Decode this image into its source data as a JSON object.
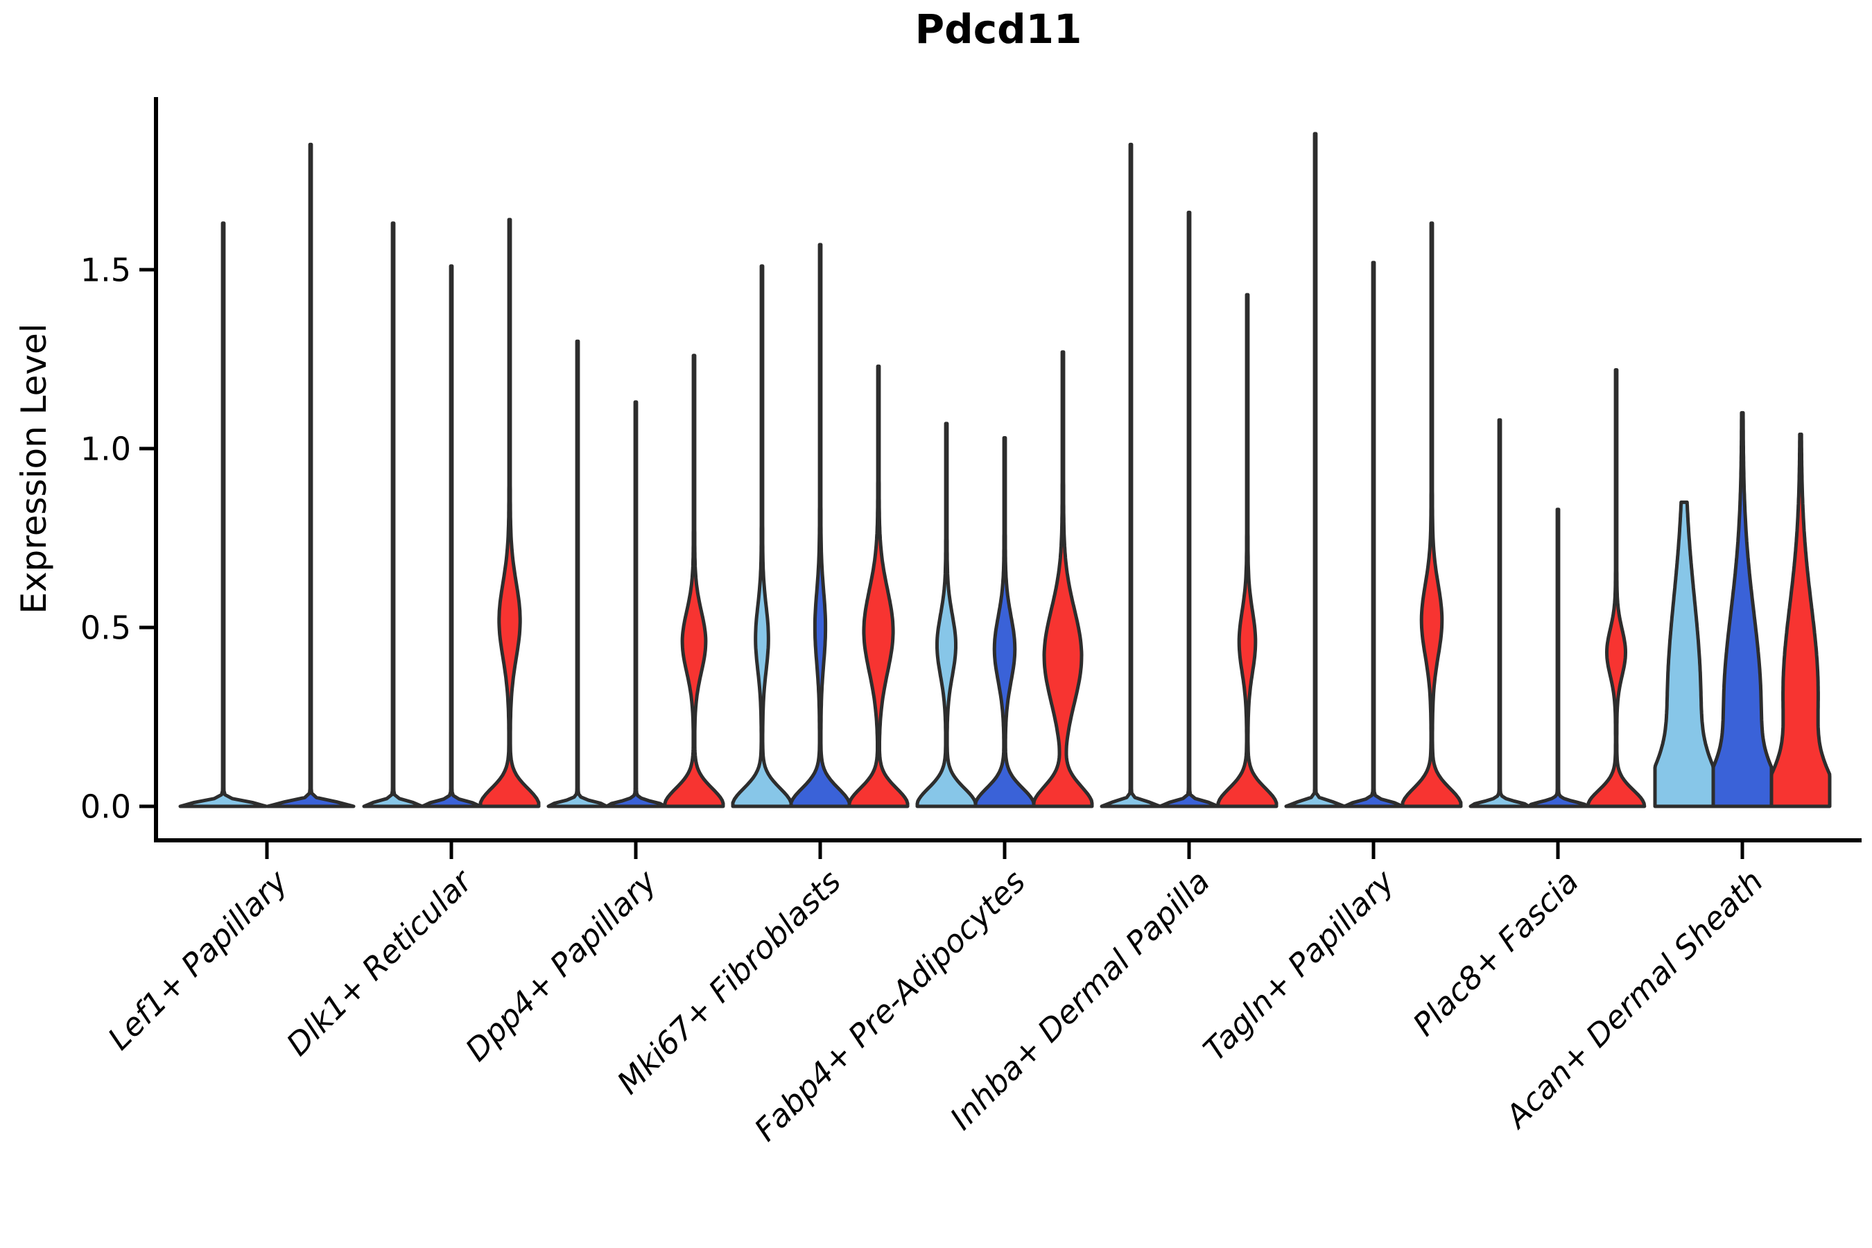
{
  "chart_data": {
    "type": "violin",
    "title": "Pdcd11",
    "ylabel": "Expression Level",
    "xlabel": "",
    "ylim": [
      -0.18,
      1.98
    ],
    "grid": false,
    "legend": "none",
    "yticks": [
      {
        "value": 0.0,
        "label": "0.0"
      },
      {
        "value": 0.5,
        "label": "0.5"
      },
      {
        "value": 1.0,
        "label": "1.0"
      },
      {
        "value": 1.5,
        "label": "1.5"
      }
    ],
    "categories": [
      "Lef1+ Papillary",
      "Dlk1+ Reticular",
      "Dpp4+ Papillary",
      "Mki67+ Fibroblasts",
      "Fabp4+ Pre-Adipocytes",
      "Inhba+ Dermal Papilla",
      "Tagln+ Papillary",
      "Plac8+ Fascia",
      "Acan+ Dermal Sheath"
    ],
    "palette": {
      "skyblue": "#87C6E8",
      "blue": "#3A62D8",
      "red": "#F73431"
    },
    "outline_color": "#2D2D2D",
    "groups": [
      {
        "label": "Lef1+ Papillary",
        "violins": [
          {
            "color": "skyblue",
            "max": 1.63,
            "base_w": 1.0,
            "base_s": 0.012,
            "bulge_w": 0,
            "bulge_mu": 0,
            "bulge_s": 1,
            "spike_w": 0.015
          },
          {
            "color": "blue",
            "max": 1.85,
            "base_w": 1.0,
            "base_s": 0.012,
            "bulge_w": 0,
            "bulge_mu": 0,
            "bulge_s": 1,
            "spike_w": 0.015
          }
        ]
      },
      {
        "label": "Dlk1+ Reticular",
        "violins": [
          {
            "color": "skyblue",
            "max": 1.63,
            "base_w": 1.0,
            "base_s": 0.012,
            "bulge_w": 0,
            "bulge_mu": 0,
            "bulge_s": 1,
            "spike_w": 0.022
          },
          {
            "color": "blue",
            "max": 1.51,
            "base_w": 1.0,
            "base_s": 0.012,
            "bulge_w": 0,
            "bulge_mu": 0,
            "bulge_s": 1,
            "spike_w": 0.022
          },
          {
            "color": "red",
            "max": 1.64,
            "base_w": 1.0,
            "base_s": 0.05,
            "bulge_w": 0.34,
            "bulge_mu": 0.52,
            "bulge_s": 0.105,
            "spike_w": 0.022
          }
        ]
      },
      {
        "label": "Dpp4+ Papillary",
        "violins": [
          {
            "color": "skyblue",
            "max": 1.3,
            "base_w": 1.0,
            "base_s": 0.012,
            "bulge_w": 0,
            "bulge_mu": 0,
            "bulge_s": 1,
            "spike_w": 0.022
          },
          {
            "color": "blue",
            "max": 1.13,
            "base_w": 1.0,
            "base_s": 0.012,
            "bulge_w": 0,
            "bulge_mu": 0,
            "bulge_s": 1,
            "spike_w": 0.022
          },
          {
            "color": "red",
            "max": 1.26,
            "base_w": 1.0,
            "base_s": 0.05,
            "bulge_w": 0.38,
            "bulge_mu": 0.46,
            "bulge_s": 0.085,
            "spike_w": 0.022
          }
        ]
      },
      {
        "label": "Mki67+ Fibroblasts",
        "violins": [
          {
            "color": "skyblue",
            "max": 1.51,
            "base_w": 1.0,
            "base_s": 0.05,
            "bulge_w": 0.2,
            "bulge_mu": 0.47,
            "bulge_s": 0.09,
            "spike_w": 0.022
          },
          {
            "color": "blue",
            "max": 1.57,
            "base_w": 1.0,
            "base_s": 0.05,
            "bulge_w": 0.16,
            "bulge_mu": 0.5,
            "bulge_s": 0.1,
            "spike_w": 0.022
          },
          {
            "color": "red",
            "max": 1.23,
            "base_w": 1.0,
            "base_s": 0.05,
            "bulge_w": 0.48,
            "bulge_mu": 0.49,
            "bulge_s": 0.115,
            "spike_w": 0.022
          }
        ]
      },
      {
        "label": "Fabp4+ Pre-Adipocytes",
        "violins": [
          {
            "color": "skyblue",
            "max": 1.07,
            "base_w": 1.0,
            "base_s": 0.05,
            "bulge_w": 0.3,
            "bulge_mu": 0.45,
            "bulge_s": 0.085,
            "spike_w": 0.022
          },
          {
            "color": "blue",
            "max": 1.03,
            "base_w": 1.0,
            "base_s": 0.05,
            "bulge_w": 0.33,
            "bulge_mu": 0.44,
            "bulge_s": 0.09,
            "spike_w": 0.022
          },
          {
            "color": "red",
            "max": 1.27,
            "base_w": 1.0,
            "base_s": 0.055,
            "bulge_w": 0.62,
            "bulge_mu": 0.42,
            "bulge_s": 0.13,
            "spike_w": 0.022
          }
        ]
      },
      {
        "label": "Inhba+ Dermal Papilla",
        "violins": [
          {
            "color": "skyblue",
            "max": 1.85,
            "base_w": 1.0,
            "base_s": 0.012,
            "bulge_w": 0,
            "bulge_mu": 0,
            "bulge_s": 1,
            "spike_w": 0.022
          },
          {
            "color": "blue",
            "max": 1.66,
            "base_w": 1.0,
            "base_s": 0.012,
            "bulge_w": 0,
            "bulge_mu": 0,
            "bulge_s": 1,
            "spike_w": 0.022
          },
          {
            "color": "red",
            "max": 1.43,
            "base_w": 1.0,
            "base_s": 0.05,
            "bulge_w": 0.26,
            "bulge_mu": 0.46,
            "bulge_s": 0.085,
            "spike_w": 0.022
          }
        ]
      },
      {
        "label": "Tagln+ Papillary",
        "violins": [
          {
            "color": "skyblue",
            "max": 1.88,
            "base_w": 1.0,
            "base_s": 0.012,
            "bulge_w": 0,
            "bulge_mu": 0,
            "bulge_s": 1,
            "spike_w": 0.022
          },
          {
            "color": "blue",
            "max": 1.52,
            "base_w": 1.0,
            "base_s": 0.012,
            "bulge_w": 0,
            "bulge_mu": 0,
            "bulge_s": 1,
            "spike_w": 0.022
          },
          {
            "color": "red",
            "max": 1.63,
            "base_w": 1.0,
            "base_s": 0.05,
            "bulge_w": 0.33,
            "bulge_mu": 0.52,
            "bulge_s": 0.1,
            "spike_w": 0.022
          }
        ]
      },
      {
        "label": "Plac8+ Fascia",
        "violins": [
          {
            "color": "skyblue",
            "max": 1.08,
            "base_w": 1.0,
            "base_s": 0.012,
            "bulge_w": 0,
            "bulge_mu": 0,
            "bulge_s": 1,
            "spike_w": 0.022
          },
          {
            "color": "blue",
            "max": 0.83,
            "base_w": 1.0,
            "base_s": 0.012,
            "bulge_w": 0,
            "bulge_mu": 0,
            "bulge_s": 1,
            "spike_w": 0.022
          },
          {
            "color": "red",
            "max": 1.22,
            "base_w": 0.95,
            "base_s": 0.045,
            "bulge_w": 0.3,
            "bulge_mu": 0.43,
            "bulge_s": 0.065,
            "spike_w": 0.022
          }
        ]
      },
      {
        "label": "Acan+ Dermal Sheath",
        "violins": [
          {
            "color": "skyblue",
            "max": 0.85,
            "base_w": 1.0,
            "base_s": 0.1,
            "bulge_w": 0.55,
            "bulge_mu": 0.3,
            "bulge_s": 0.28,
            "spike_w": 0.022
          },
          {
            "color": "blue",
            "max": 1.1,
            "base_w": 1.0,
            "base_s": 0.09,
            "bulge_w": 0.62,
            "bulge_mu": 0.28,
            "bulge_s": 0.26,
            "spike_w": 0.022
          },
          {
            "color": "red",
            "max": 1.04,
            "base_w": 1.0,
            "base_s": 0.09,
            "bulge_w": 0.58,
            "bulge_mu": 0.32,
            "bulge_s": 0.24,
            "spike_w": 0.022
          }
        ]
      }
    ]
  }
}
